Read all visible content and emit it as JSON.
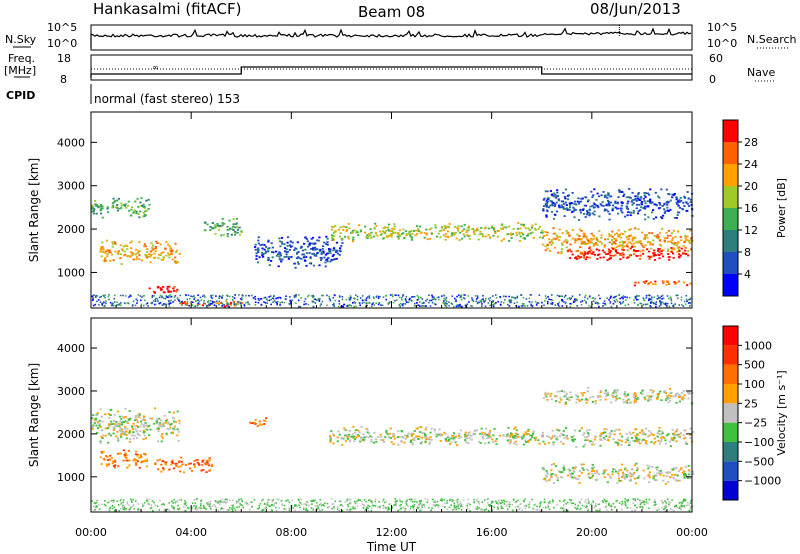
{
  "header": {
    "station": "Hankasalmi (fitACF)",
    "beam": "Beam 08",
    "date": "08/Jun/2013"
  },
  "strip": {
    "nsky_label": "N.Sky",
    "nsearch_label": "N.Search",
    "nsky_ticks": [
      "10^5",
      "10^0"
    ],
    "nsearch_ticks": [
      "10^5",
      "10^0"
    ],
    "freq_label_top": "Freq.",
    "freq_label_unit": "[MHz]",
    "freq_ticks": [
      "18",
      "8"
    ],
    "nave_label": "Nave",
    "nave_ticks": [
      "60",
      "0"
    ],
    "cpid_label": "CPID",
    "cpid_text": "normal (fast stereo) 153",
    "freq_note": "∞"
  },
  "chart_data": [
    {
      "type": "heatmap",
      "name": "power",
      "ylabel": "Slant Range [km]",
      "xlabel": "",
      "x_ticks": [
        "00:00",
        "04:00",
        "08:00",
        "12:00",
        "16:00",
        "20:00",
        "00:00"
      ],
      "xlim_hours": [
        0,
        24
      ],
      "y_ticks": [
        1000,
        2000,
        3000,
        4000
      ],
      "ylim_km": [
        180,
        4700
      ],
      "colorbar": {
        "label": "Power [dB]",
        "ticks": [
          "4",
          "8",
          "12",
          "16",
          "20",
          "24",
          "28"
        ],
        "colors": [
          "#0000ff",
          "#2050c0",
          "#2e7e7e",
          "#3cb050",
          "#a0c828",
          "#ffa000",
          "#ff6000",
          "#ff0000"
        ]
      },
      "features": [
        {
          "kind": "band",
          "from_h": 0,
          "to_h": 2.3,
          "center_km": 2500,
          "width_km": 500,
          "level": 3
        },
        {
          "kind": "band",
          "from_h": 0.3,
          "to_h": 3.5,
          "center_km": 1500,
          "width_km": 600,
          "level": 5
        },
        {
          "kind": "band",
          "from_h": 2.3,
          "to_h": 3.5,
          "center_km": 620,
          "width_km": 250,
          "level": 7
        },
        {
          "kind": "band",
          "from_h": 3.5,
          "to_h": 6,
          "center_km": 310,
          "width_km": 160,
          "level": 6
        },
        {
          "kind": "band",
          "from_h": 4.5,
          "to_h": 6,
          "center_km": 2050,
          "width_km": 500,
          "level": 3
        },
        {
          "kind": "band",
          "from_h": 6.5,
          "to_h": 10,
          "center_km": 1500,
          "width_km": 800,
          "level": 1
        },
        {
          "kind": "band",
          "from_h": 9.5,
          "to_h": 18,
          "center_km": 1950,
          "width_km": 450,
          "level": 4
        },
        {
          "kind": "band",
          "from_h": 18,
          "to_h": 24,
          "center_km": 1750,
          "width_km": 650,
          "level": 5
        },
        {
          "kind": "band",
          "from_h": 19,
          "to_h": 24,
          "center_km": 1450,
          "width_km": 350,
          "level": 7
        },
        {
          "kind": "band",
          "from_h": 21.5,
          "to_h": 24,
          "center_km": 780,
          "width_km": 150,
          "level": 6
        },
        {
          "kind": "band",
          "from_h": 18,
          "to_h": 24,
          "center_km": 2600,
          "width_km": 800,
          "level": 1
        }
      ]
    },
    {
      "type": "heatmap",
      "name": "velocity",
      "ylabel": "Slant Range [km]",
      "xlabel": "Time UT",
      "x_ticks": [
        "00:00",
        "04:00",
        "08:00",
        "12:00",
        "16:00",
        "20:00",
        "00:00"
      ],
      "xlim_hours": [
        0,
        24
      ],
      "y_ticks": [
        1000,
        2000,
        3000,
        4000
      ],
      "ylim_km": [
        180,
        4700
      ],
      "colorbar": {
        "label": "Velocity [m s⁻¹]",
        "ticks": [
          "1000",
          "500",
          "100",
          "25",
          "−25",
          "−100",
          "−500",
          "−1000"
        ],
        "colors": [
          "#0000d0",
          "#2050c0",
          "#2e7e7e",
          "#40c040",
          "#c0c0c0",
          "#ffa000",
          "#ff7000",
          "#ff3000",
          "#ff0000"
        ]
      },
      "features": [
        {
          "kind": "band",
          "from_h": 0,
          "to_h": 3.5,
          "center_km": 2200,
          "width_km": 900,
          "level": 4
        },
        {
          "kind": "band",
          "from_h": 0.3,
          "to_h": 2.2,
          "center_km": 1400,
          "width_km": 500,
          "level": 6
        },
        {
          "kind": "band",
          "from_h": 2.5,
          "to_h": 4.8,
          "center_km": 1300,
          "width_km": 400,
          "level": 6
        },
        {
          "kind": "band",
          "from_h": 6.3,
          "to_h": 7.0,
          "center_km": 2300,
          "width_km": 300,
          "level": 6
        },
        {
          "kind": "band",
          "from_h": 9.5,
          "to_h": 24,
          "center_km": 1950,
          "width_km": 500,
          "level": 4
        },
        {
          "kind": "band",
          "from_h": 18,
          "to_h": 24,
          "center_km": 2900,
          "width_km": 400,
          "level": 4
        },
        {
          "kind": "band",
          "from_h": 18,
          "to_h": 24,
          "center_km": 1100,
          "width_km": 500,
          "level": 4
        }
      ]
    }
  ]
}
